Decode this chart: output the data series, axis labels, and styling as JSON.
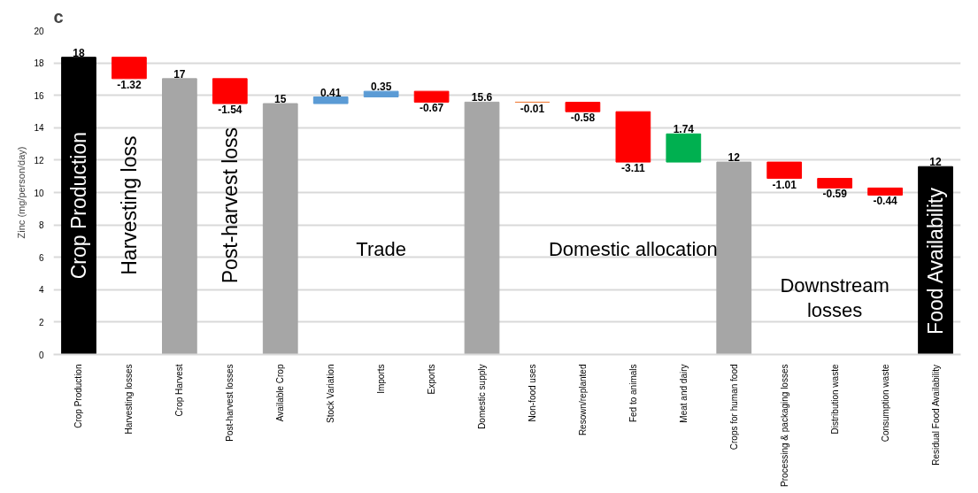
{
  "chart_data": {
    "type": "bar",
    "ylabel": "Zinc (mg/person/day)",
    "categories": [
      "Crop Production",
      "Harvesting losses",
      "Crop Harvest",
      "Post-harvest losses",
      "Available Crop",
      "Stock Variation",
      "Imports",
      "Exports",
      "Domestic supply",
      "Non-food uses",
      "Resown/replanted",
      "Fed to animals",
      "Meat and dairy",
      "Crops for human food",
      "Processing & packaging losses",
      "Distribution waste",
      "Consumption waste",
      "Residual Food Availability"
    ],
    "values": [
      18.35,
      -1.32,
      17.03,
      -1.54,
      15.49,
      0.41,
      0.35,
      -0.67,
      15.58,
      -0.01,
      -0.58,
      -3.11,
      1.74,
      11.88,
      -1.01,
      -0.59,
      -0.44,
      11.6
    ],
    "base": [
      0,
      18.35,
      0,
      17.03,
      0,
      15.49,
      15.9,
      16.25,
      0,
      15.58,
      15.57,
      14.99,
      11.88,
      0,
      11.88,
      10.87,
      10.28,
      0
    ],
    "colors": [
      "#000000",
      "#ff0000",
      "#a6a6a6",
      "#ff0000",
      "#a6a6a6",
      "#5b9bd5",
      "#5b9bd5",
      "#ff0000",
      "#a6a6a6",
      "#f08040",
      "#ff0000",
      "#ff0000",
      "#00b050",
      "#a6a6a6",
      "#ff0000",
      "#ff0000",
      "#ff0000",
      "#000000"
    ],
    "value_labels": [
      "18",
      "-1.32",
      "17",
      "-1.54",
      "15",
      "0.41",
      "0.35",
      "-0.67",
      "15.6",
      "-0.01",
      "-0.58",
      "-3.11",
      "1.74",
      "12",
      "-1.01",
      "-0.59",
      "-0.44",
      "12"
    ],
    "ylim": [
      0,
      20
    ],
    "yticks": [
      0,
      2,
      4,
      6,
      8,
      10,
      12,
      14,
      16,
      18,
      20
    ],
    "grid": "y",
    "annotations": [
      "c",
      "Crop Production",
      "Harvesting loss",
      "Post-harvest loss",
      "Trade",
      "Domestic allocation",
      "Downstream\nlosses",
      "Food Availability"
    ]
  }
}
